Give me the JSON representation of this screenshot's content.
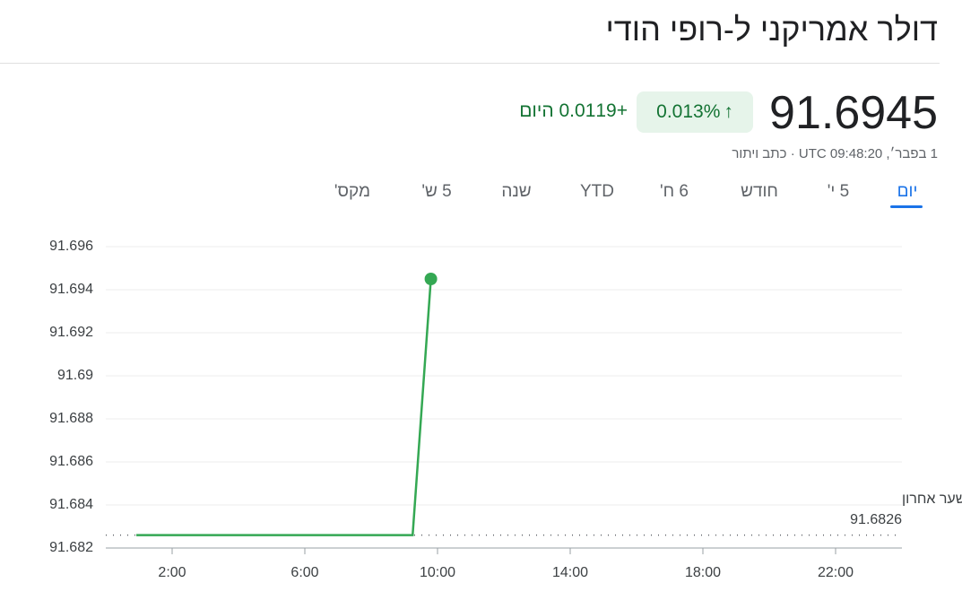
{
  "header": {
    "title": "דולר אמריקני ל-רופי הודי",
    "price": "91.6945",
    "change_percent": "0.013%",
    "change": "+0.0119",
    "period": "היום",
    "timestamp": "1 בפבר׳, UTC 09:48:20",
    "disclaimer": "כתב ויתור"
  },
  "tabs": [
    "יום",
    "5 י'",
    "חודש",
    "6 ח'",
    "YTD",
    "שנה",
    "5 ש'",
    "מקס'"
  ],
  "chart_data": {
    "type": "line",
    "color": "#34a853",
    "x": [
      0.92,
      9.25,
      9.8
    ],
    "values": [
      91.6826,
      91.6826,
      91.6945
    ],
    "xlim": [
      0,
      24
    ],
    "xticks": [
      {
        "value": 2,
        "label": "2:00"
      },
      {
        "value": 6,
        "label": "6:00"
      },
      {
        "value": 10,
        "label": "10:00"
      },
      {
        "value": 14,
        "label": "14:00"
      },
      {
        "value": 18,
        "label": "18:00"
      },
      {
        "value": 22,
        "label": "22:00"
      }
    ],
    "ylim": [
      91.682,
      91.696
    ],
    "yticks": [
      91.682,
      91.684,
      91.686,
      91.688,
      91.69,
      91.692,
      91.694,
      91.696
    ],
    "grid": true,
    "previous_close": {
      "label": "שער אחרון",
      "value": 91.6826
    }
  }
}
